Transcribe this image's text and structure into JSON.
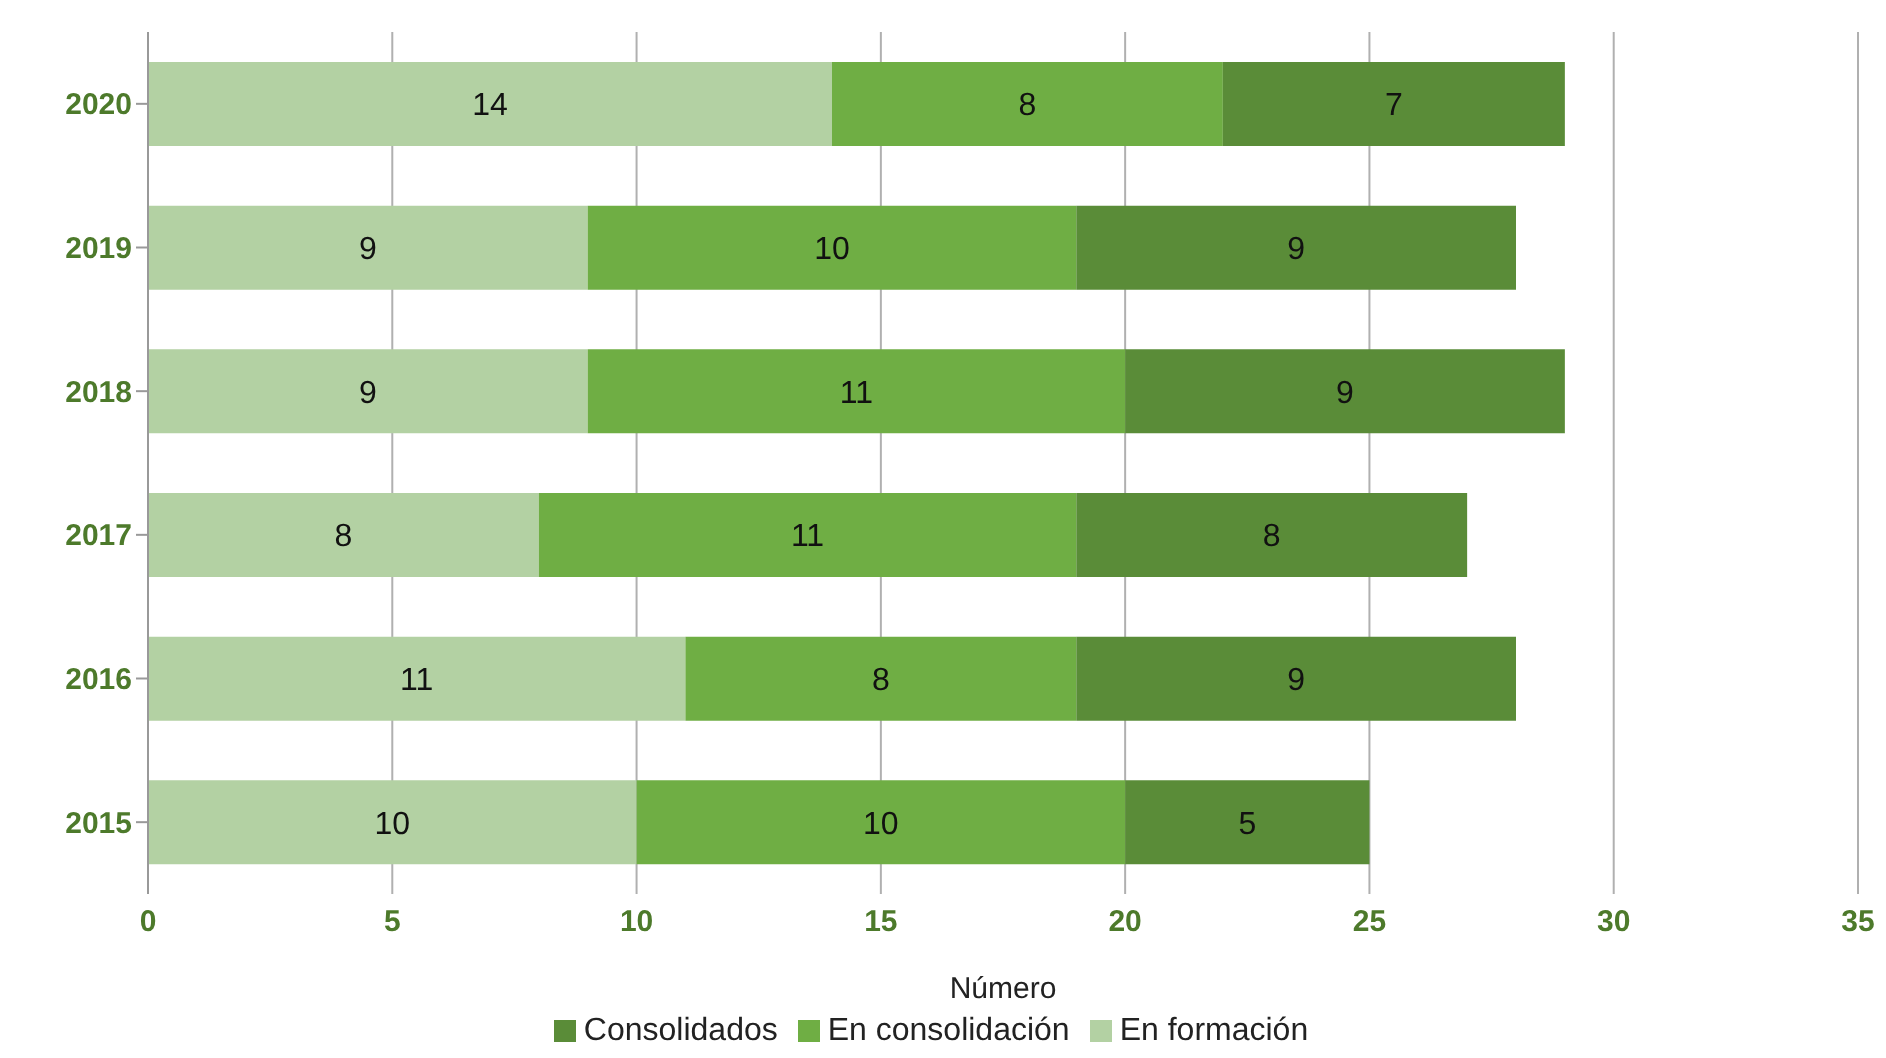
{
  "chart_data": {
    "type": "bar",
    "orientation": "horizontal",
    "stacked": true,
    "xlabel": "Número",
    "categories": [
      "2020",
      "2019",
      "2018",
      "2017",
      "2016",
      "2015"
    ],
    "series": [
      {
        "name": "En formación",
        "color": "#b3d1a3",
        "values": [
          14,
          9,
          9,
          8,
          11,
          10
        ]
      },
      {
        "name": "En consolidación",
        "color": "#6fae44",
        "values": [
          8,
          10,
          11,
          11,
          8,
          10
        ]
      },
      {
        "name": "Consolidados",
        "color": "#5a8c38",
        "values": [
          7,
          9,
          9,
          8,
          9,
          5
        ]
      }
    ],
    "xlim": [
      0,
      35
    ],
    "xticks": [
      0,
      5,
      10,
      15,
      20,
      25,
      30,
      35
    ],
    "grid": "x",
    "legend": "bottom",
    "data_labels": true
  }
}
